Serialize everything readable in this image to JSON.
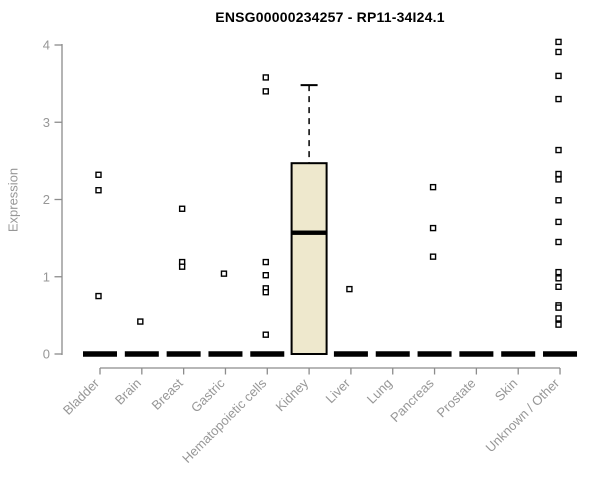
{
  "chart_data": {
    "type": "boxplot",
    "title": "ENSG00000234257 - RP11-34I24.1",
    "xlabel": "",
    "ylabel": "Expression",
    "ylim": [
      0,
      4.1
    ],
    "yticks": [
      "0",
      "1",
      "2",
      "3",
      "4"
    ],
    "grid": false,
    "legend": "none",
    "categories": [
      "Bladder",
      "Brain",
      "Breast",
      "Gastric",
      "Hematopoietic cells",
      "Kidney",
      "Liver",
      "Lung",
      "Pancreas",
      "Prostate",
      "Skin",
      "Unknown / Other"
    ],
    "series": [
      {
        "category": "Bladder",
        "q1": 0,
        "median": 0,
        "q3": 0,
        "whisker_low": 0,
        "whisker_high": 0,
        "outliers": [
          2.32,
          2.12,
          0.75
        ]
      },
      {
        "category": "Brain",
        "q1": 0,
        "median": 0,
        "q3": 0,
        "whisker_low": 0,
        "whisker_high": 0,
        "outliers": [
          0.42
        ]
      },
      {
        "category": "Breast",
        "q1": 0,
        "median": 0,
        "q3": 0,
        "whisker_low": 0,
        "whisker_high": 0,
        "outliers": [
          1.88,
          1.19,
          1.13
        ]
      },
      {
        "category": "Gastric",
        "q1": 0,
        "median": 0,
        "q3": 0,
        "whisker_low": 0,
        "whisker_high": 0,
        "outliers": [
          1.04
        ]
      },
      {
        "category": "Hematopoietic cells",
        "q1": 0,
        "median": 0,
        "q3": 0,
        "whisker_low": 0,
        "whisker_high": 0,
        "outliers": [
          3.58,
          3.4,
          1.19,
          1.02,
          0.85,
          0.8,
          0.25
        ]
      },
      {
        "category": "Kidney",
        "q1": 0,
        "median": 1.57,
        "q3": 2.47,
        "whisker_low": 0,
        "whisker_high": 3.48,
        "outliers": []
      },
      {
        "category": "Liver",
        "q1": 0,
        "median": 0,
        "q3": 0,
        "whisker_low": 0,
        "whisker_high": 0,
        "outliers": [
          0.84
        ]
      },
      {
        "category": "Lung",
        "q1": 0,
        "median": 0,
        "q3": 0,
        "whisker_low": 0,
        "whisker_high": 0,
        "outliers": []
      },
      {
        "category": "Pancreas",
        "q1": 0,
        "median": 0,
        "q3": 0,
        "whisker_low": 0,
        "whisker_high": 0,
        "outliers": [
          2.16,
          1.63,
          1.26
        ]
      },
      {
        "category": "Prostate",
        "q1": 0,
        "median": 0,
        "q3": 0,
        "whisker_low": 0,
        "whisker_high": 0,
        "outliers": []
      },
      {
        "category": "Skin",
        "q1": 0,
        "median": 0,
        "q3": 0,
        "whisker_low": 0,
        "whisker_high": 0,
        "outliers": []
      },
      {
        "category": "Unknown / Other",
        "q1": 0,
        "median": 0,
        "q3": 0,
        "whisker_low": 0,
        "whisker_high": 0,
        "outliers": [
          4.04,
          3.91,
          3.6,
          3.3,
          2.64,
          2.33,
          2.26,
          1.99,
          1.71,
          1.45,
          1.06,
          0.98,
          0.87,
          0.63,
          0.6,
          0.46,
          0.38
        ]
      }
    ],
    "colors": {
      "box_fill": "#EEE8CD",
      "box_border": "#000000",
      "median": "#000000",
      "outlier_fill": "#FFFFFF",
      "outlier_border": "#000000",
      "axis": "#8C8C8C",
      "tick_label": "#979797",
      "title": "#000000"
    }
  }
}
